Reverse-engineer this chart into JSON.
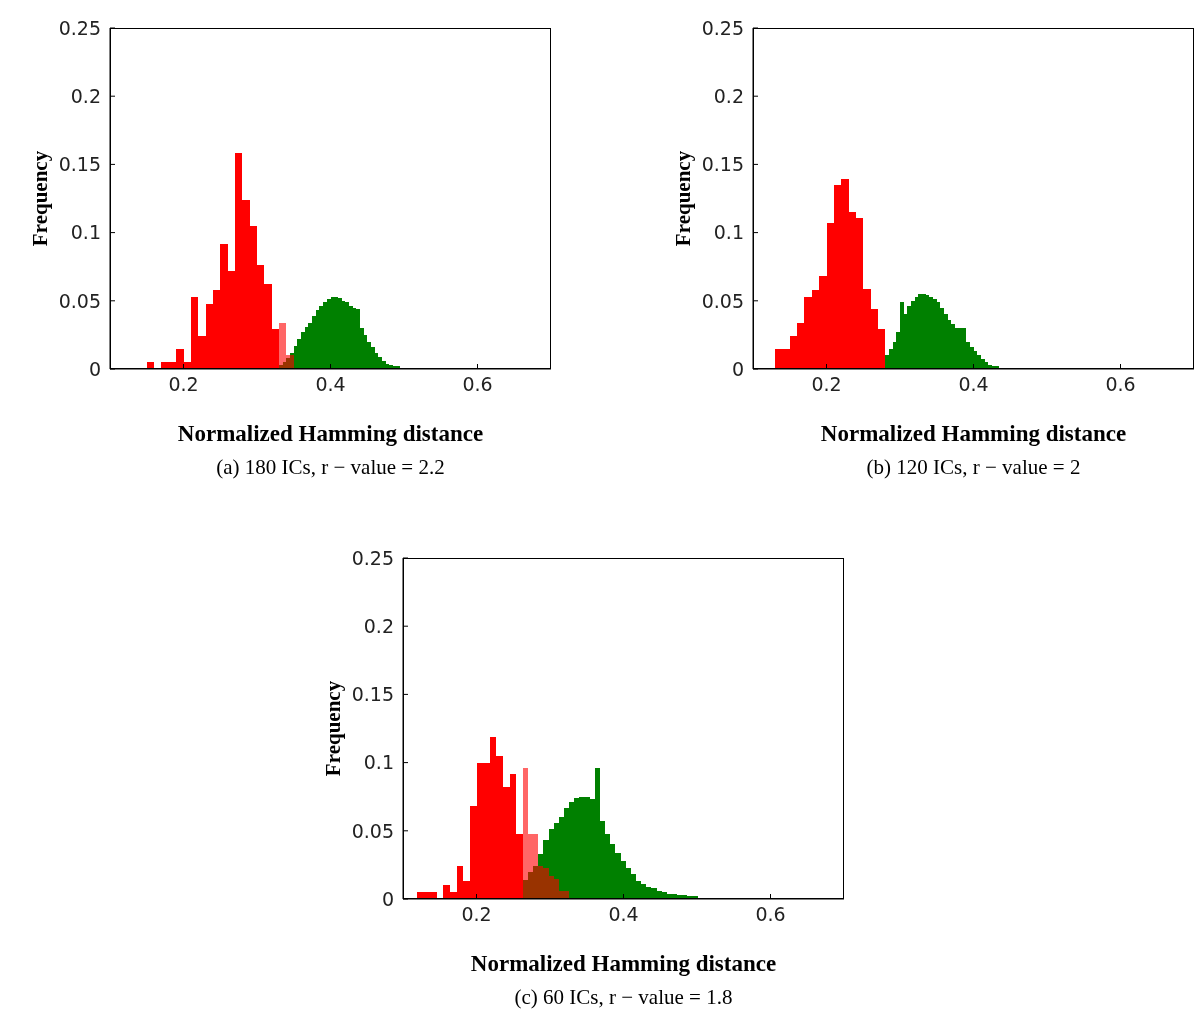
{
  "chart_data": [
    {
      "type": "histogram",
      "xlabel": "Normalized Hamming distance",
      "ylabel": "Frequency",
      "annotations": [
        "(a) 180 ICs, r − value = 2.2"
      ],
      "xlim": [
        0.1,
        0.7
      ],
      "ylim": [
        0,
        0.25
      ],
      "xticks": [
        0.2,
        0.4,
        0.6
      ],
      "yticks": [
        0,
        0.05,
        0.1,
        0.15,
        0.2,
        0.25
      ],
      "bins": [
        0.15,
        0.155,
        0.16,
        0.165,
        0.17,
        0.175,
        0.18,
        0.185,
        0.19,
        0.195,
        0.2,
        0.205,
        0.21,
        0.215,
        0.22,
        0.225,
        0.23,
        0.235,
        0.24,
        0.245,
        0.25,
        0.255,
        0.26,
        0.265,
        0.27,
        0.275,
        0.28,
        0.285,
        0.29,
        0.295,
        0.3,
        0.305,
        0.31,
        0.315,
        0.32,
        0.325,
        0.33,
        0.335,
        0.34,
        0.345,
        0.35,
        0.355,
        0.36,
        0.365,
        0.37,
        0.375,
        0.38,
        0.385,
        0.39,
        0.395,
        0.4,
        0.405,
        0.41,
        0.415,
        0.42,
        0.425,
        0.43,
        0.435,
        0.44,
        0.445,
        0.45,
        0.455,
        0.46,
        0.465,
        0.47,
        0.475,
        0.48,
        0.485,
        0.49,
        0.495,
        0.5,
        0.505,
        0.51
      ],
      "series": [
        {
          "color": "#008000",
          "values": [
            null,
            null,
            null,
            null,
            null,
            null,
            null,
            null,
            null,
            null,
            null,
            null,
            null,
            null,
            null,
            null,
            null,
            null,
            null,
            null,
            null,
            null,
            null,
            null,
            null,
            null,
            null,
            null,
            null,
            null,
            null,
            null,
            null,
            null,
            null,
            null,
            0.003,
            0.005,
            0.008,
            0.012,
            0.017,
            0.022,
            0.027,
            0.031,
            0.034,
            0.039,
            0.043,
            0.046,
            0.049,
            0.051,
            0.053,
            0.053,
            0.052,
            0.05,
            0.049,
            0.046,
            0.045,
            0.044,
            0.03,
            0.025,
            0.02,
            0.016,
            0.012,
            0.009,
            0.006,
            0.004,
            0.003,
            0.002,
            0.002,
            0.001,
            0.001,
            0.001
          ]
        },
        {
          "color": "#ff0000",
          "values": [
            0.005,
            0.005,
            0,
            0,
            0.005,
            0.005,
            0.005,
            0.005,
            0.015,
            0.015,
            0.005,
            0.005,
            0.053,
            0.053,
            0.024,
            0.024,
            0.048,
            0.048,
            0.058,
            0.058,
            0.092,
            0.092,
            0.072,
            0.072,
            0.158,
            0.158,
            0.124,
            0.124,
            0.105,
            0.105,
            0.076,
            0.076,
            0.062,
            0.062,
            0.029,
            0.029,
            0.034,
            0.034,
            0.01,
            0.01,
            null,
            null,
            null,
            null,
            null,
            null,
            null,
            null,
            null,
            null,
            null,
            null,
            null,
            null,
            null,
            null,
            null,
            null,
            null,
            null,
            null,
            null,
            null,
            null,
            null,
            null,
            null,
            null,
            null,
            null,
            null,
            null
          ]
        }
      ]
    },
    {
      "type": "histogram",
      "xlabel": "Normalized Hamming distance",
      "ylabel": "Frequency",
      "annotations": [
        "(b) 120 ICs, r − value = 2"
      ],
      "xlim": [
        0.1,
        0.7
      ],
      "ylim": [
        0,
        0.25
      ],
      "xticks": [
        0.2,
        0.4,
        0.6
      ],
      "yticks": [
        0,
        0.05,
        0.1,
        0.15,
        0.2,
        0.25
      ],
      "bins": [
        0.13,
        0.135,
        0.14,
        0.145,
        0.15,
        0.155,
        0.16,
        0.165,
        0.17,
        0.175,
        0.18,
        0.185,
        0.19,
        0.195,
        0.2,
        0.205,
        0.21,
        0.215,
        0.22,
        0.225,
        0.23,
        0.235,
        0.24,
        0.245,
        0.25,
        0.255,
        0.26,
        0.265,
        0.27,
        0.275,
        0.28,
        0.285,
        0.29,
        0.295,
        0.3,
        0.305,
        0.31,
        0.315,
        0.32,
        0.325,
        0.33,
        0.335,
        0.34,
        0.345,
        0.35,
        0.355,
        0.36,
        0.365,
        0.37,
        0.375,
        0.38,
        0.385,
        0.39,
        0.395,
        0.4,
        0.405,
        0.41,
        0.415,
        0.42,
        0.425,
        0.43,
        0.435,
        0.44,
        0.445,
        0.45,
        0.455,
        0.46,
        0.465
      ],
      "series": [
        {
          "color": "#008000",
          "values": [
            null,
            null,
            null,
            null,
            null,
            null,
            null,
            null,
            null,
            null,
            null,
            null,
            null,
            null,
            null,
            null,
            null,
            null,
            null,
            null,
            null,
            null,
            null,
            null,
            null,
            null,
            null,
            null,
            null,
            null,
            0.01,
            0.015,
            0.02,
            0.027,
            0.049,
            0.04,
            0.046,
            0.05,
            0.053,
            0.055,
            0.055,
            0.054,
            0.053,
            0.051,
            0.049,
            0.045,
            0.04,
            0.036,
            0.033,
            0.03,
            0.03,
            0.03,
            0.02,
            0.016,
            0.013,
            0.01,
            0.007,
            0.005,
            0.003,
            0.002,
            0.002,
            0.001,
            0.001,
            0.001,
            0.001,
            0.001,
            0.001
          ]
        },
        {
          "color": "#ff0000",
          "values": [
            0.015,
            0.015,
            0.015,
            0.015,
            0.024,
            0.024,
            0.034,
            0.034,
            0.053,
            0.053,
            0.058,
            0.058,
            0.068,
            0.068,
            0.107,
            0.107,
            0.135,
            0.135,
            0.139,
            0.139,
            0.115,
            0.115,
            0.111,
            0.111,
            0.059,
            0.059,
            0.044,
            0.044,
            0.029,
            0.029,
            null,
            null,
            null,
            null,
            null,
            null,
            null,
            null,
            null,
            null,
            null,
            null,
            null,
            null,
            null,
            null,
            null,
            null,
            null,
            null,
            null,
            null,
            null,
            null,
            null,
            null,
            null,
            null,
            null,
            null,
            null,
            null,
            null,
            null,
            null,
            null,
            null
          ]
        }
      ]
    },
    {
      "type": "histogram",
      "xlabel": "Normalized Hamming distance",
      "ylabel": "Frequency",
      "annotations": [
        "(c) 60 ICs, r − value = 1.8"
      ],
      "xlim": [
        0.1,
        0.7
      ],
      "ylim": [
        0,
        0.25
      ],
      "xticks": [
        0.2,
        0.4,
        0.6
      ],
      "yticks": [
        0,
        0.05,
        0.1,
        0.15,
        0.2,
        0.25
      ],
      "bins": [
        0.119,
        0.128,
        0.137,
        0.146,
        0.155,
        0.164,
        0.173,
        0.182,
        0.191,
        0.2,
        0.209,
        0.218,
        0.227,
        0.236,
        0.245,
        0.254,
        0.263,
        0.27,
        0.277,
        0.284,
        0.291,
        0.298,
        0.305,
        0.312,
        0.319,
        0.326,
        0.333,
        0.34,
        0.347,
        0.354,
        0.361,
        0.368,
        0.375,
        0.382,
        0.389,
        0.396,
        0.403,
        0.41,
        0.417,
        0.424,
        0.431,
        0.438,
        0.445,
        0.452,
        0.459,
        0.466,
        0.473,
        0.48,
        0.487,
        0.494,
        0.501,
        0.508,
        0.515,
        0.522,
        0.529,
        0.536,
        0.543
      ],
      "series": [
        {
          "color": "#008000",
          "values": [
            null,
            null,
            null,
            null,
            null,
            null,
            null,
            null,
            null,
            null,
            null,
            null,
            null,
            null,
            null,
            null,
            0.014,
            0.02,
            0.024,
            0.033,
            0.043,
            0.051,
            0.056,
            0.06,
            0.067,
            0.071,
            0.074,
            0.075,
            0.075,
            0.073,
            0.096,
            0.057,
            0.048,
            0.04,
            0.034,
            0.028,
            0.023,
            0.018,
            0.013,
            0.011,
            0.009,
            0.008,
            0.006,
            0.005,
            0.004,
            0.004,
            0.003,
            0.003,
            0.002,
            0.002,
            0.001,
            0.001,
            0.001,
            0.001,
            0.001,
            0.001
          ]
        },
        {
          "color": "#ff0000",
          "values": [
            0.005,
            0.005,
            0.005,
            0,
            0.01,
            0.005,
            0.024,
            0.013,
            0.068,
            0.1,
            0.1,
            0.119,
            0.105,
            0.082,
            0.092,
            0.048,
            0.096,
            0.048,
            0.048,
            0.024,
            0.023,
            0.017,
            0.015,
            0.006,
            0.006,
            null,
            null,
            null,
            null,
            null,
            null,
            null,
            null,
            null,
            null,
            null,
            null,
            null,
            null,
            null,
            null,
            null,
            null,
            null,
            null,
            null,
            null,
            null,
            null,
            null,
            null,
            null,
            null,
            null,
            null,
            null
          ]
        }
      ]
    }
  ]
}
